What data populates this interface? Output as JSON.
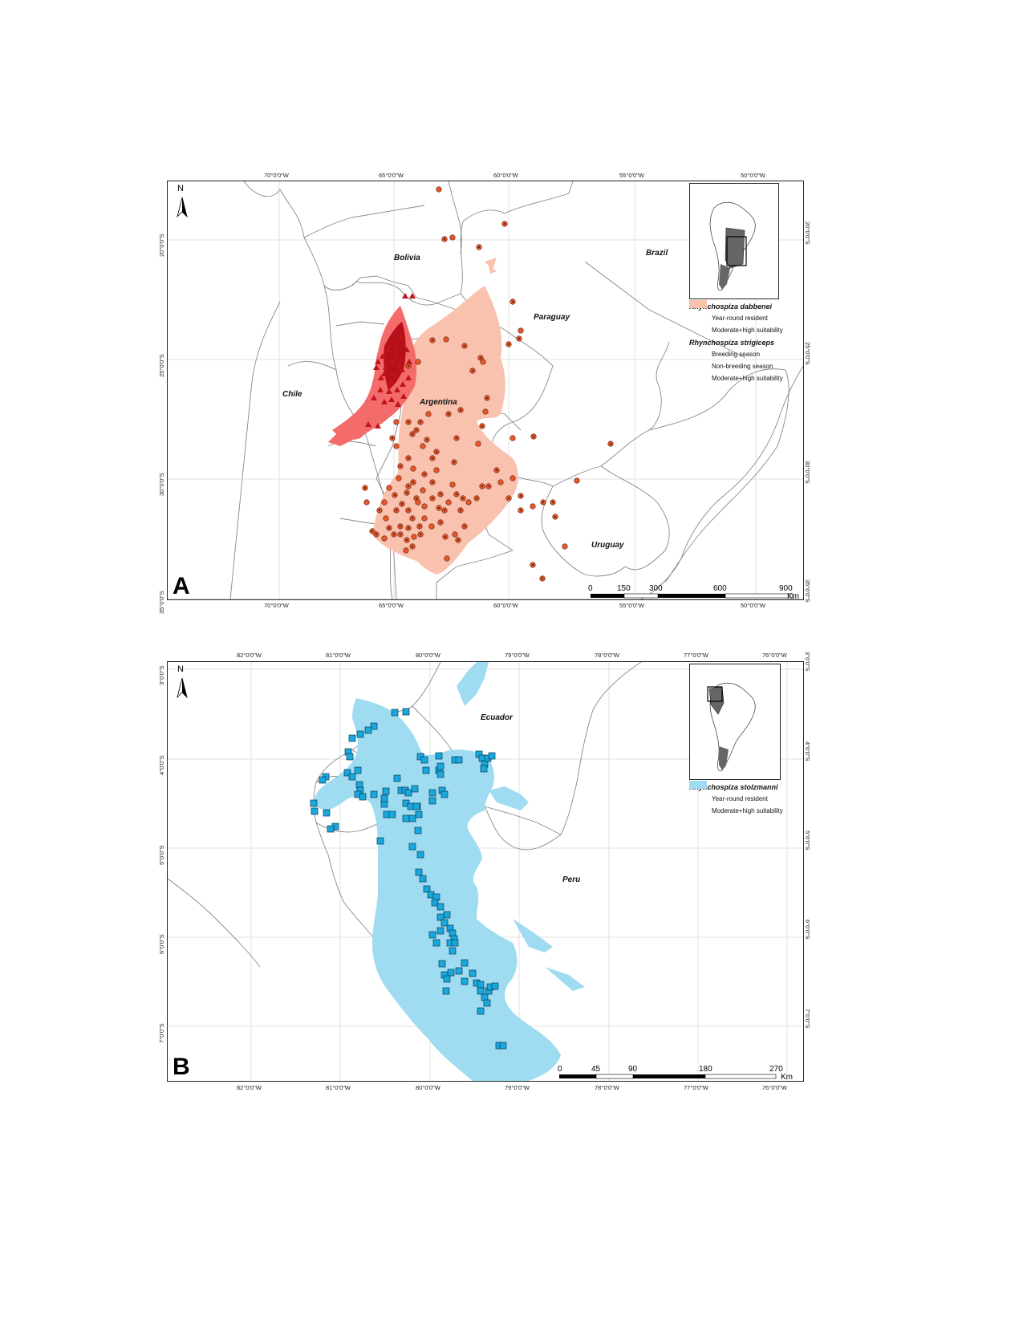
{
  "panel_a": {
    "label": "A",
    "north": "N",
    "top_ticks": [
      "70°0'0\"W",
      "65°0'0\"W",
      "60°0'0\"W",
      "55°0'0\"W",
      "50°0'0\"W"
    ],
    "bottom_ticks": [
      "70°0'0\"W",
      "65°0'0\"W",
      "60°0'0\"W",
      "55°0'0\"W",
      "50°0'0\"W"
    ],
    "left_ticks": [
      "20°0'0\"S",
      "25°0'0\"S",
      "30°0'0\"S",
      "35°0'0\"S"
    ],
    "right_ticks": [
      "20°0'0\"S",
      "25°0'0\"S",
      "30°0'0\"S",
      "35°0'0\"S"
    ],
    "countries": {
      "bolivia": "Bolivia",
      "brazil": "Brazil",
      "paraguay": "Paraguay",
      "chile": "Chile",
      "argentina": "Argentina",
      "uruguay": "Uruguay"
    },
    "legend": {
      "species1": "Rhynchospiza dabbenei",
      "s1_item1": "Year-round resident",
      "s1_item2": "Moderate+high suitability",
      "species2": "Rhynchospiza strigiceps",
      "s2_item1": "Breeding season",
      "s2_item2": "Non-breeding season",
      "s2_item3": "Moderate+high suitability"
    },
    "scale": {
      "labels": [
        "0",
        "150",
        "300",
        "600",
        "900"
      ],
      "unit": "Km"
    },
    "colors": {
      "dabbenei_area": "#f36b6b",
      "dabbenei_point": "#c0141c",
      "strigiceps_area": "#f9c2ae",
      "strigiceps_point": "#e8572a"
    }
  },
  "panel_b": {
    "label": "B",
    "north": "N",
    "top_ticks": [
      "82°0'0\"W",
      "81°0'0\"W",
      "80°0'0\"W",
      "79°0'0\"W",
      "78°0'0\"W",
      "77°0'0\"W",
      "76°0'0\"W"
    ],
    "bottom_ticks": [
      "82°0'0\"W",
      "81°0'0\"W",
      "80°0'0\"W",
      "79°0'0\"W",
      "78°0'0\"W",
      "77°0'0\"W",
      "76°0'0\"W"
    ],
    "left_ticks": [
      "3°0'0\"S",
      "4°0'0\"S",
      "5°0'0\"S",
      "6°0'0\"S",
      "7°0'0\"S"
    ],
    "right_ticks": [
      "3°0'0\"S",
      "4°0'0\"S",
      "5°0'0\"S",
      "6°0'0\"S",
      "7°0'0\"S"
    ],
    "countries": {
      "ecuador": "Ecuador",
      "peru": "Peru"
    },
    "legend": {
      "species1": "Rhynchospiza stolzmanni",
      "s1_item1": "Year-round resident",
      "s1_item2": "Moderate+high suitability"
    },
    "scale": {
      "labels": [
        "0",
        "45",
        "90",
        "180",
        "270"
      ],
      "unit": "Km"
    },
    "colors": {
      "stolzmanni_area": "#9fdcf2",
      "stolzmanni_point": "#1aa7dc"
    }
  }
}
